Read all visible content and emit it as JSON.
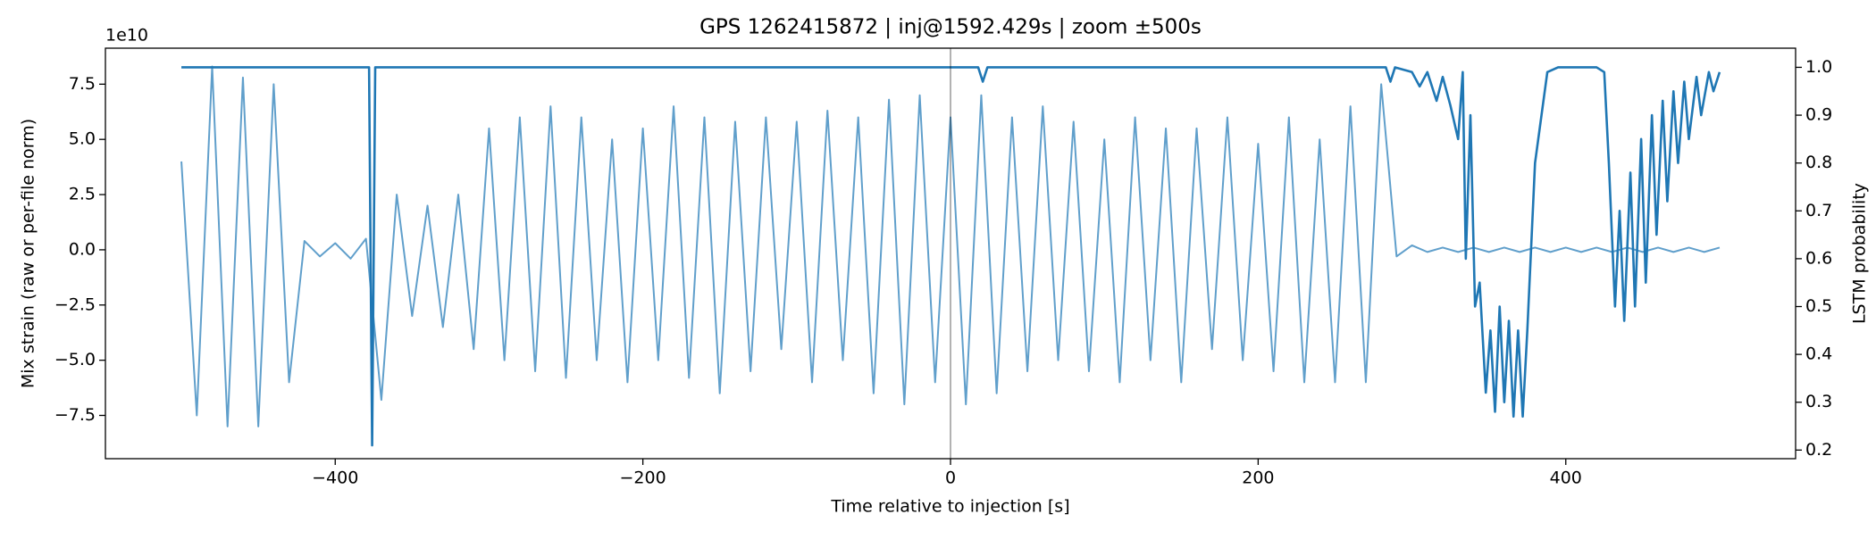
{
  "chart_data": {
    "type": "line",
    "title": "GPS 1262415872 | inj@1592.429s | zoom ±500s",
    "x_label": "Time relative to injection [s]",
    "y_label": "Mix strain (raw or per-file norm)",
    "y2_label": "LSTM probability",
    "y_offset_label": "1e10",
    "xlim": [
      -549.4,
      549.4
    ],
    "ylim": [
      -9.46,
      9.13
    ],
    "y2lim": [
      0.182,
      1.04
    ],
    "xticks": [
      {
        "value": -400,
        "label": "−400"
      },
      {
        "value": -200,
        "label": "−200"
      },
      0,
      200,
      400
    ],
    "yticks": [
      {
        "value": -7.5,
        "label": "−7.5"
      },
      {
        "value": -5,
        "label": "−5.0"
      },
      {
        "value": -2.5,
        "label": "−2.5"
      },
      {
        "value": 0,
        "label": "0.0"
      },
      2.5,
      {
        "value": 5,
        "label": "5.0"
      },
      7.5
    ],
    "y2ticks": [
      0.2,
      0.3,
      0.4,
      0.5,
      0.6,
      0.7,
      0.8,
      0.9,
      {
        "value": 1,
        "label": "1.0"
      }
    ],
    "vline": 0,
    "series": [
      {
        "name": "Mix strain",
        "color": "#609fcb",
        "x": [
          -500,
          -490,
          -480,
          -470,
          -460,
          -450,
          -440,
          -430,
          -420,
          -410,
          -400,
          -390,
          -380,
          -370,
          -360,
          -350,
          -340,
          -330,
          -320,
          -310,
          -300,
          -290,
          -280,
          -270,
          -260,
          -250,
          -240,
          -230,
          -220,
          -210,
          -200,
          -190,
          -180,
          -170,
          -160,
          -150,
          -140,
          -130,
          -120,
          -110,
          -100,
          -90,
          -80,
          -70,
          -60,
          -50,
          -40,
          -30,
          -20,
          -10,
          0,
          10,
          20,
          30,
          40,
          50,
          60,
          70,
          80,
          90,
          100,
          110,
          120,
          130,
          140,
          150,
          160,
          170,
          180,
          190,
          200,
          210,
          220,
          230,
          240,
          250,
          260,
          270,
          280,
          290,
          300,
          310,
          320,
          330,
          340,
          350,
          360,
          370,
          380,
          390,
          400,
          410,
          420,
          430,
          440,
          450,
          460,
          470,
          480,
          490,
          500
        ],
        "values": [
          4,
          -7.5,
          8.3,
          -8,
          7.8,
          -8,
          7.5,
          -6,
          0.4,
          -0.3,
          0.3,
          -0.4,
          0.5,
          -6.8,
          2.5,
          -3,
          2,
          -3.5,
          2.5,
          -4.5,
          5.5,
          -5,
          6,
          -5.5,
          6.5,
          -5.8,
          6,
          -5,
          5,
          -6,
          5.5,
          -5,
          6.5,
          -5.8,
          6,
          -6.5,
          5.8,
          -5.5,
          6,
          -4.5,
          5.8,
          -6,
          6.3,
          -5,
          6,
          -6.5,
          6.8,
          -7,
          7,
          -6,
          6,
          -7,
          7,
          -6.5,
          6,
          -5.5,
          6.5,
          -5,
          5.8,
          -5.5,
          5,
          -6,
          6,
          -5,
          5.5,
          -6,
          5.5,
          -4.5,
          6,
          -5,
          4.8,
          -5.5,
          6,
          -6,
          5,
          -6,
          6.5,
          -6,
          7.5,
          -0.3,
          0.2,
          -0.1,
          0.1,
          -0.1,
          0.1,
          -0.1,
          0.1,
          -0.1,
          0.1,
          -0.1,
          0.1,
          -0.1,
          0.1,
          -0.1,
          0.1,
          -0.1,
          0.1,
          -0.1,
          0.1,
          -0.1,
          0.1
        ]
      },
      {
        "name": "LSTM probability",
        "color": "#1f77b4",
        "axis": "y2",
        "x": [
          -500,
          -378,
          -376,
          -374,
          18,
          21,
          24,
          283,
          286,
          289,
          300,
          305,
          310,
          316,
          320,
          325,
          330,
          333,
          335,
          338,
          341,
          344,
          348,
          351,
          354,
          357,
          360,
          363,
          366,
          369,
          372,
          375,
          380,
          388,
          395,
          420,
          425,
          428,
          432,
          435,
          438,
          442,
          445,
          449,
          452,
          456,
          459,
          463,
          466,
          470,
          473,
          477,
          480,
          485,
          488,
          493,
          496,
          500
        ],
        "values": [
          1.0,
          1.0,
          0.21,
          1.0,
          1.0,
          0.97,
          1.0,
          1.0,
          0.97,
          1.0,
          0.99,
          0.96,
          0.99,
          0.93,
          0.98,
          0.92,
          0.85,
          0.99,
          0.6,
          0.9,
          0.5,
          0.55,
          0.32,
          0.45,
          0.28,
          0.5,
          0.3,
          0.47,
          0.27,
          0.45,
          0.27,
          0.45,
          0.8,
          0.99,
          1.0,
          1.0,
          0.99,
          0.8,
          0.5,
          0.7,
          0.47,
          0.78,
          0.5,
          0.85,
          0.55,
          0.9,
          0.65,
          0.93,
          0.72,
          0.95,
          0.8,
          0.97,
          0.85,
          0.98,
          0.9,
          0.99,
          0.95,
          0.99
        ]
      }
    ]
  }
}
